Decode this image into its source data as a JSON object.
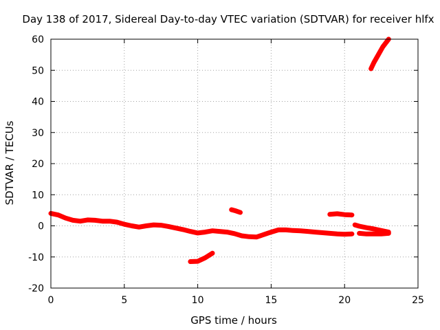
{
  "chart_data": {
    "type": "line",
    "title": "Day 138 of 2017, Sidereal Day-to-day VTEC variation (SDTVAR) for receiver hlfx",
    "xlabel": "GPS time / hours",
    "ylabel": "SDTVAR / TECUs",
    "xlim": [
      0,
      25
    ],
    "ylim": [
      -20,
      60
    ],
    "xticks": [
      0,
      5,
      10,
      15,
      20,
      25
    ],
    "yticks": [
      -20,
      -10,
      0,
      10,
      20,
      30,
      40,
      50,
      60
    ],
    "grid": true,
    "color": "#ff0000",
    "series": [
      {
        "name": "main",
        "points": [
          [
            0.0,
            4.0
          ],
          [
            0.5,
            3.5
          ],
          [
            1.0,
            2.5
          ],
          [
            1.5,
            1.8
          ],
          [
            2.0,
            1.5
          ],
          [
            2.5,
            1.9
          ],
          [
            3.0,
            1.8
          ],
          [
            3.5,
            1.5
          ],
          [
            4.0,
            1.5
          ],
          [
            4.5,
            1.2
          ],
          [
            5.0,
            0.5
          ],
          [
            5.5,
            0.0
          ],
          [
            6.0,
            -0.4
          ],
          [
            6.5,
            0.0
          ],
          [
            7.0,
            0.3
          ],
          [
            7.5,
            0.2
          ],
          [
            8.0,
            -0.2
          ],
          [
            8.5,
            -0.7
          ],
          [
            9.0,
            -1.2
          ],
          [
            9.5,
            -1.8
          ],
          [
            10.0,
            -2.3
          ],
          [
            10.5,
            -2.0
          ],
          [
            11.0,
            -1.6
          ],
          [
            11.5,
            -1.8
          ],
          [
            12.0,
            -2.0
          ],
          [
            12.5,
            -2.5
          ],
          [
            13.0,
            -3.2
          ],
          [
            13.5,
            -3.5
          ],
          [
            14.0,
            -3.6
          ],
          [
            14.5,
            -2.8
          ],
          [
            15.0,
            -2.0
          ],
          [
            15.5,
            -1.3
          ],
          [
            16.0,
            -1.3
          ],
          [
            16.5,
            -1.5
          ],
          [
            17.0,
            -1.6
          ],
          [
            17.5,
            -1.8
          ],
          [
            18.0,
            -2.0
          ],
          [
            18.5,
            -2.2
          ],
          [
            19.0,
            -2.4
          ],
          [
            19.5,
            -2.6
          ],
          [
            20.0,
            -2.7
          ],
          [
            20.5,
            -2.6
          ]
        ]
      },
      {
        "name": "segment-2",
        "points": [
          [
            9.5,
            -11.5
          ],
          [
            10.0,
            -11.4
          ],
          [
            10.5,
            -10.3
          ],
          [
            11.0,
            -8.8
          ]
        ]
      },
      {
        "name": "segment-3",
        "points": [
          [
            12.3,
            5.2
          ],
          [
            12.6,
            4.8
          ],
          [
            12.9,
            4.3
          ]
        ]
      },
      {
        "name": "segment-4",
        "points": [
          [
            19.0,
            3.7
          ],
          [
            19.5,
            3.9
          ],
          [
            20.0,
            3.6
          ],
          [
            20.5,
            3.5
          ]
        ]
      },
      {
        "name": "segment-5",
        "points": [
          [
            20.7,
            0.3
          ],
          [
            21.0,
            -0.1
          ],
          [
            21.5,
            -0.6
          ],
          [
            22.0,
            -1.0
          ],
          [
            22.5,
            -1.5
          ],
          [
            23.0,
            -2.0
          ]
        ]
      },
      {
        "name": "segment-6",
        "points": [
          [
            21.0,
            -2.4
          ],
          [
            21.5,
            -2.6
          ],
          [
            22.0,
            -2.6
          ],
          [
            22.5,
            -2.6
          ],
          [
            23.0,
            -2.4
          ]
        ]
      },
      {
        "name": "segment-7",
        "points": [
          [
            21.8,
            50.5
          ],
          [
            22.0,
            52.5
          ],
          [
            22.3,
            55.0
          ],
          [
            22.6,
            57.5
          ],
          [
            23.0,
            60.0
          ]
        ]
      }
    ]
  }
}
